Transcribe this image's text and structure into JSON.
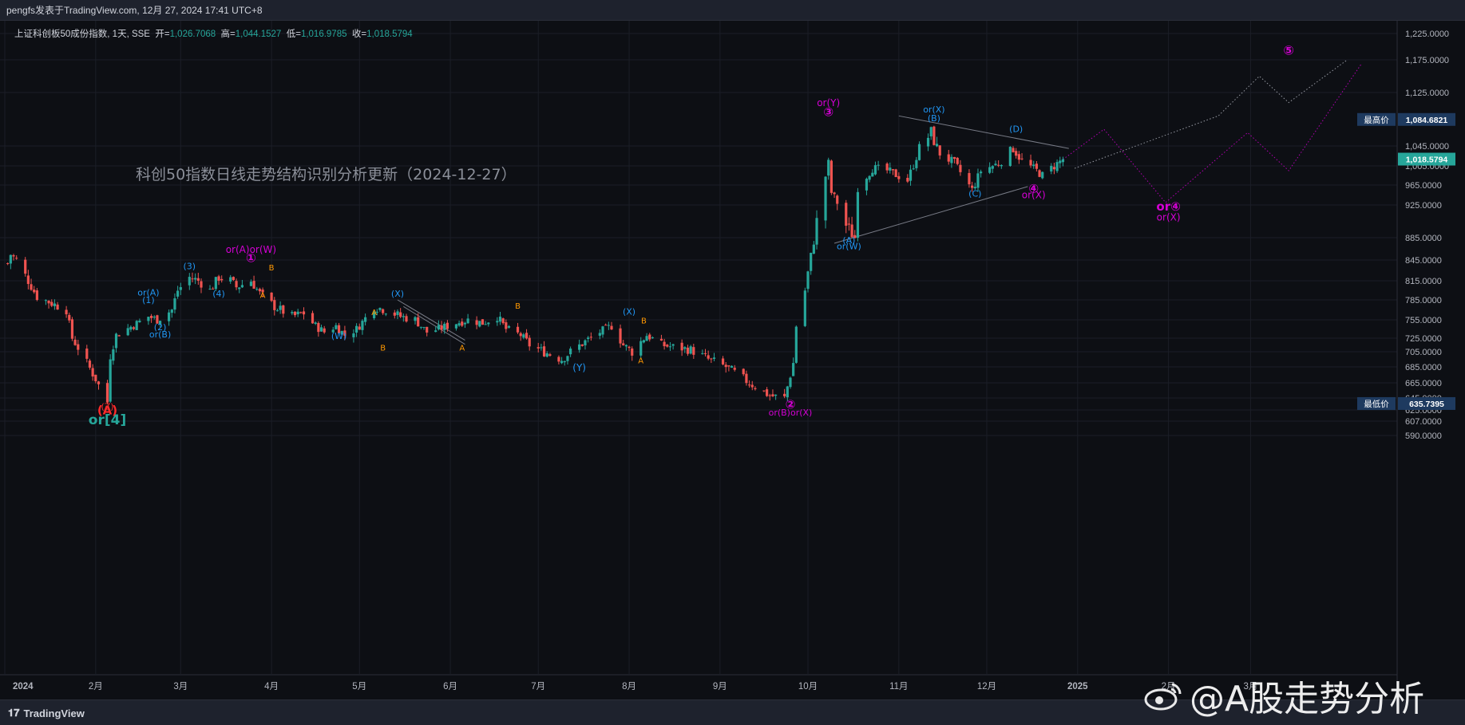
{
  "header": {
    "publisher_line": "pengfs发表于TradingView.com, 12月 27, 2024 17:41 UTC+8"
  },
  "legend": {
    "symbol": "上证科创板50成份指数, 1天, SSE",
    "open_label": "开=",
    "open": "1,026.7068",
    "high_label": "高=",
    "high": "1,044.1527",
    "low_label": "低=",
    "low": "1,016.9785",
    "close_label": "收=",
    "close": "1,018.5794"
  },
  "footer": {
    "brand": "TradingView"
  },
  "watermark": {
    "text": "@A股走势分析"
  },
  "colors": {
    "background": "#131722",
    "up": "#26a69a",
    "down": "#ef5350",
    "wave_blue": "#2196f3",
    "wave_orange": "#ff9800",
    "wave_magenta": "#d500d5",
    "wave_teal": "#26a69a",
    "wave_red": "#ff2a2a"
  },
  "chart_data": {
    "type": "candlestick",
    "title": "科创50指数日线走势结构识别分析更新（2024-12-27）",
    "y_axis_ticks": [
      "1,225.0000",
      "1,175.0000",
      "1,125.0000",
      "1,045.0000",
      "1,005.0000",
      "965.0000",
      "925.0000",
      "885.0000",
      "845.0000",
      "815.0000",
      "785.0000",
      "755.0000",
      "725.0000",
      "705.0000",
      "685.0000",
      "665.0000",
      "645.0000",
      "625.0000",
      "607.0000",
      "590.0000"
    ],
    "x_axis_ticks": [
      "2024",
      "2月",
      "3月",
      "4月",
      "5月",
      "6月",
      "7月",
      "8月",
      "9月",
      "10月",
      "11月",
      "12月",
      "2025",
      "2月",
      "3月"
    ],
    "price_badges": {
      "high_label": "最高价",
      "high_value": "1,084.6821",
      "last_value": "1,018.5794",
      "low_label": "最低价",
      "low_value": "635.7395"
    },
    "path_points": [
      [
        "2024-01-02",
        840
      ],
      [
        "2024-01-03",
        855
      ],
      [
        "2024-01-05",
        845
      ],
      [
        "2024-01-09",
        815
      ],
      [
        "2024-01-12",
        790
      ],
      [
        "2024-01-17",
        780
      ],
      [
        "2024-01-22",
        770
      ],
      [
        "2024-01-24",
        725
      ],
      [
        "2024-01-29",
        690
      ],
      [
        "2024-02-01",
        670
      ],
      [
        "2024-02-05",
        638
      ],
      [
        "2024-02-06",
        700
      ],
      [
        "2024-02-08",
        730
      ],
      [
        "2024-02-19",
        760
      ],
      [
        "2024-02-22",
        755
      ],
      [
        "2024-02-27",
        770
      ],
      [
        "2024-02-29",
        800
      ],
      [
        "2024-03-04",
        820
      ],
      [
        "2024-03-07",
        815
      ],
      [
        "2024-03-11",
        800
      ],
      [
        "2024-03-14",
        820
      ],
      [
        "2024-03-18",
        815
      ],
      [
        "2024-03-20",
        805
      ],
      [
        "2024-03-25",
        815
      ],
      [
        "2024-03-28",
        795
      ],
      [
        "2024-04-02",
        775
      ],
      [
        "2024-04-08",
        760
      ],
      [
        "2024-04-12",
        765
      ],
      [
        "2024-04-16",
        745
      ],
      [
        "2024-04-19",
        735
      ],
      [
        "2024-04-23",
        745
      ],
      [
        "2024-04-26",
        730
      ],
      [
        "2024-04-30",
        740
      ],
      [
        "2024-05-06",
        775
      ],
      [
        "2024-05-10",
        770
      ],
      [
        "2024-05-15",
        760
      ],
      [
        "2024-05-20",
        755
      ],
      [
        "2024-05-24",
        735
      ],
      [
        "2024-05-28",
        740
      ],
      [
        "2024-06-03",
        750
      ],
      [
        "2024-06-07",
        755
      ],
      [
        "2024-06-12",
        750
      ],
      [
        "2024-06-17",
        760
      ],
      [
        "2024-06-20",
        740
      ],
      [
        "2024-06-25",
        730
      ],
      [
        "2024-06-28",
        715
      ],
      [
        "2024-07-03",
        705
      ],
      [
        "2024-07-09",
        695
      ],
      [
        "2024-07-12",
        705
      ],
      [
        "2024-07-17",
        720
      ],
      [
        "2024-07-22",
        735
      ],
      [
        "2024-07-26",
        745
      ],
      [
        "2024-07-30",
        715
      ],
      [
        "2024-08-02",
        705
      ],
      [
        "2024-08-07",
        730
      ],
      [
        "2024-08-12",
        715
      ],
      [
        "2024-08-16",
        712
      ],
      [
        "2024-08-22",
        708
      ],
      [
        "2024-08-28",
        695
      ],
      [
        "2024-09-03",
        685
      ],
      [
        "2024-09-09",
        670
      ],
      [
        "2024-09-13",
        660
      ],
      [
        "2024-09-18",
        648
      ],
      [
        "2024-09-23",
        645
      ],
      [
        "2024-09-26",
        690
      ],
      [
        "2024-09-27",
        745
      ],
      [
        "2024-09-30",
        800
      ],
      [
        "2024-10-08",
        1010
      ],
      [
        "2024-10-09",
        950
      ],
      [
        "2024-10-14",
        900
      ],
      [
        "2024-10-17",
        885
      ],
      [
        "2024-10-18",
        960
      ],
      [
        "2024-10-23",
        1000
      ],
      [
        "2024-10-28",
        995
      ],
      [
        "2024-11-04",
        975
      ],
      [
        "2024-11-08",
        1040
      ],
      [
        "2024-11-12",
        1065
      ],
      [
        "2024-11-15",
        1030
      ],
      [
        "2024-11-20",
        1010
      ],
      [
        "2024-11-26",
        955
      ],
      [
        "2024-11-29",
        995
      ],
      [
        "2024-12-05",
        1010
      ],
      [
        "2024-12-10",
        1040
      ],
      [
        "2024-12-13",
        1015
      ],
      [
        "2024-12-18",
        995
      ],
      [
        "2024-12-20",
        985
      ],
      [
        "2024-12-24",
        1005
      ],
      [
        "2024-12-27",
        1018.58
      ]
    ],
    "wave_labels": [
      {
        "text": "(Z)",
        "date": "2024-02-05",
        "price": 626,
        "color": "wave_red",
        "size": 11
      },
      {
        "text": "(A)",
        "date": "2024-02-05",
        "price": 618,
        "color": "wave_red",
        "size": 15
      },
      {
        "text": "or[4]",
        "date": "2024-02-05",
        "price": 603,
        "color": "wave_teal",
        "size": 17
      },
      {
        "text": "or(A)",
        "date": "2024-02-19",
        "price": 792,
        "color": "wave_blue",
        "size": 11
      },
      {
        "text": "(1)",
        "date": "2024-02-19",
        "price": 780,
        "color": "wave_blue",
        "size": 11
      },
      {
        "text": "(2)",
        "date": "2024-02-23",
        "price": 738,
        "color": "wave_blue",
        "size": 11
      },
      {
        "text": "or(B)",
        "date": "2024-02-23",
        "price": 726,
        "color": "wave_blue",
        "size": 11
      },
      {
        "text": "(3)",
        "date": "2024-03-04",
        "price": 832,
        "color": "wave_blue",
        "size": 11
      },
      {
        "text": "(4)",
        "date": "2024-03-14",
        "price": 790,
        "color": "wave_blue",
        "size": 11
      },
      {
        "text": "or(A)or(W)",
        "date": "2024-03-25",
        "price": 858,
        "color": "wave_magenta",
        "size": 12
      },
      {
        "text": "①",
        "date": "2024-03-25",
        "price": 842,
        "color": "wave_magenta",
        "size": 15
      },
      {
        "text": "B",
        "date": "2024-04-01",
        "price": 830,
        "color": "wave_orange",
        "size": 10
      },
      {
        "text": "A",
        "date": "2024-03-29",
        "price": 788,
        "color": "wave_orange",
        "size": 10
      },
      {
        "text": "(W)",
        "date": "2024-04-24",
        "price": 724,
        "color": "wave_blue",
        "size": 11
      },
      {
        "text": "A",
        "date": "2024-05-06",
        "price": 762,
        "color": "wave_orange",
        "size": 10
      },
      {
        "text": "B",
        "date": "2024-05-09",
        "price": 707,
        "color": "wave_orange",
        "size": 10
      },
      {
        "text": "(X)",
        "date": "2024-05-14",
        "price": 790,
        "color": "wave_blue",
        "size": 11
      },
      {
        "text": "A",
        "date": "2024-06-05",
        "price": 707,
        "color": "wave_orange",
        "size": 10
      },
      {
        "text": "B",
        "date": "2024-06-24",
        "price": 772,
        "color": "wave_orange",
        "size": 10
      },
      {
        "text": "(Y)",
        "date": "2024-07-15",
        "price": 680,
        "color": "wave_blue",
        "size": 12
      },
      {
        "text": "(X)",
        "date": "2024-08-01",
        "price": 763,
        "color": "wave_blue",
        "size": 11
      },
      {
        "text": "B",
        "date": "2024-08-06",
        "price": 749,
        "color": "wave_orange",
        "size": 10
      },
      {
        "text": "A",
        "date": "2024-08-05",
        "price": 690,
        "color": "wave_orange",
        "size": 10
      },
      {
        "text": "②",
        "date": "2024-09-25",
        "price": 628,
        "color": "wave_magenta",
        "size": 15
      },
      {
        "text": "or(B)or(X)",
        "date": "2024-09-25",
        "price": 616,
        "color": "wave_magenta",
        "size": 11
      },
      {
        "text": "or(Y)",
        "date": "2024-10-08",
        "price": 1105,
        "color": "wave_magenta",
        "size": 12
      },
      {
        "text": "③",
        "date": "2024-10-08",
        "price": 1090,
        "color": "wave_magenta",
        "size": 15
      },
      {
        "text": "(A)",
        "date": "2024-10-15",
        "price": 875,
        "color": "wave_blue",
        "size": 11
      },
      {
        "text": "or(W)",
        "date": "2024-10-15",
        "price": 864,
        "color": "wave_blue",
        "size": 11
      },
      {
        "text": "or(X)",
        "date": "2024-11-13",
        "price": 1095,
        "color": "wave_blue",
        "size": 11
      },
      {
        "text": "(B)",
        "date": "2024-11-13",
        "price": 1082,
        "color": "wave_blue",
        "size": 11
      },
      {
        "text": "(C)",
        "date": "2024-11-27",
        "price": 942,
        "color": "wave_blue",
        "size": 11
      },
      {
        "text": "(D)",
        "date": "2024-12-11",
        "price": 1066,
        "color": "wave_blue",
        "size": 11
      },
      {
        "text": "④",
        "date": "2024-12-17",
        "price": 950,
        "color": "wave_magenta",
        "size": 15
      },
      {
        "text": "or(X)",
        "date": "2024-12-17",
        "price": 939,
        "color": "wave_magenta",
        "size": 12
      },
      {
        "text": "or④",
        "date": "2025-02-01",
        "price": 918,
        "color": "wave_magenta",
        "size": 15
      },
      {
        "text": "or(X)",
        "date": "2025-02-01",
        "price": 906,
        "color": "wave_magenta",
        "size": 12
      },
      {
        "text": "⑤",
        "date": "2025-03-14",
        "price": 1185,
        "color": "wave_magenta",
        "size": 16
      }
    ],
    "triangle_lines": [
      {
        "from": [
          "2024-11-01",
          1090
        ],
        "to": [
          "2024-12-29",
          1040
        ]
      },
      {
        "from": [
          "2024-10-10",
          875
        ],
        "to": [
          "2024-12-15",
          962
        ]
      }
    ],
    "channel_lines": [
      {
        "from": [
          "2024-05-14",
          785
        ],
        "to": [
          "2024-06-06",
          722
        ]
      },
      {
        "from": [
          "2024-05-16",
          775
        ],
        "to": [
          "2024-06-06",
          716
        ]
      }
    ],
    "projections": [
      {
        "style": "magenta",
        "points": [
          [
            "2024-12-27",
            1018
          ],
          [
            "2025-01-10",
            1070
          ],
          [
            "2025-01-31",
            930
          ],
          [
            "2025-02-28",
            1065
          ],
          [
            "2025-03-14",
            995
          ],
          [
            "2025-04-08",
            1170
          ]
        ]
      },
      {
        "style": "gray",
        "points": [
          [
            "2024-12-31",
            1000
          ],
          [
            "2025-02-18",
            1090
          ],
          [
            "2025-03-04",
            1150
          ],
          [
            "2025-03-14",
            1110
          ],
          [
            "2025-04-03",
            1175
          ]
        ]
      }
    ]
  }
}
